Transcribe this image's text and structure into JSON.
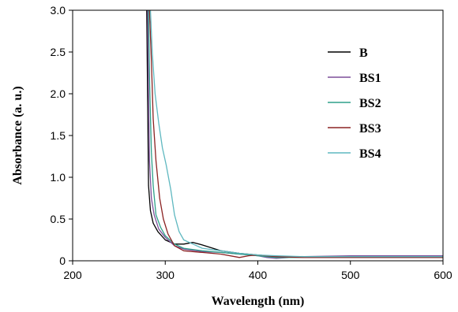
{
  "chart_data": {
    "type": "line",
    "xlabel": "Wavelength  (nm)",
    "ylabel": "Absorbance  (a. u.)",
    "xlim": [
      200,
      600
    ],
    "ylim": [
      0,
      3.0
    ],
    "x_ticks": [
      "200",
      "300",
      "400",
      "500",
      "600"
    ],
    "y_ticks": [
      "0",
      "0.5",
      "1.0",
      "1.5",
      "2.0",
      "2.5",
      "3.0"
    ],
    "legend_position": "top-right",
    "series": [
      {
        "name": "B",
        "color": "#000000",
        "points": [
          [
            280,
            3.0
          ],
          [
            281,
            1.9
          ],
          [
            282,
            0.9
          ],
          [
            284,
            0.6
          ],
          [
            287,
            0.45
          ],
          [
            292,
            0.35
          ],
          [
            300,
            0.25
          ],
          [
            310,
            0.2
          ],
          [
            320,
            0.2
          ],
          [
            330,
            0.22
          ],
          [
            340,
            0.19
          ],
          [
            360,
            0.12
          ],
          [
            380,
            0.09
          ],
          [
            400,
            0.07
          ],
          [
            420,
            0.05
          ],
          [
            450,
            0.04
          ],
          [
            500,
            0.04
          ],
          [
            550,
            0.05
          ],
          [
            600,
            0.05
          ]
        ]
      },
      {
        "name": "BS1",
        "color": "#7d4f9a",
        "points": [
          [
            281,
            3.0
          ],
          [
            282,
            2.0
          ],
          [
            283,
            1.2
          ],
          [
            285,
            0.75
          ],
          [
            288,
            0.55
          ],
          [
            293,
            0.38
          ],
          [
            300,
            0.28
          ],
          [
            310,
            0.18
          ],
          [
            320,
            0.14
          ],
          [
            340,
            0.11
          ],
          [
            360,
            0.1
          ],
          [
            380,
            0.08
          ],
          [
            400,
            0.06
          ],
          [
            410,
            0.04
          ],
          [
            420,
            0.03
          ],
          [
            450,
            0.05
          ],
          [
            500,
            0.06
          ],
          [
            550,
            0.06
          ],
          [
            600,
            0.06
          ]
        ]
      },
      {
        "name": "BS2",
        "color": "#2ea08a",
        "points": [
          [
            282,
            3.0
          ],
          [
            283,
            2.2
          ],
          [
            285,
            1.3
          ],
          [
            287,
            0.9
          ],
          [
            290,
            0.55
          ],
          [
            295,
            0.4
          ],
          [
            300,
            0.3
          ],
          [
            310,
            0.2
          ],
          [
            320,
            0.15
          ],
          [
            340,
            0.12
          ],
          [
            360,
            0.1
          ],
          [
            380,
            0.08
          ],
          [
            400,
            0.06
          ],
          [
            420,
            0.04
          ],
          [
            450,
            0.04
          ],
          [
            500,
            0.05
          ],
          [
            550,
            0.05
          ],
          [
            600,
            0.05
          ]
        ]
      },
      {
        "name": "BS3",
        "color": "#8b2323",
        "points": [
          [
            283,
            3.0
          ],
          [
            285,
            2.4
          ],
          [
            287,
            1.7
          ],
          [
            290,
            1.2
          ],
          [
            294,
            0.75
          ],
          [
            298,
            0.5
          ],
          [
            303,
            0.32
          ],
          [
            310,
            0.18
          ],
          [
            320,
            0.12
          ],
          [
            340,
            0.1
          ],
          [
            360,
            0.08
          ],
          [
            375,
            0.05
          ],
          [
            380,
            0.04
          ],
          [
            390,
            0.06
          ],
          [
            400,
            0.07
          ],
          [
            420,
            0.05
          ],
          [
            450,
            0.04
          ],
          [
            500,
            0.04
          ],
          [
            550,
            0.04
          ],
          [
            600,
            0.04
          ]
        ]
      },
      {
        "name": "BS4",
        "color": "#5fb8c0",
        "points": [
          [
            284,
            3.0
          ],
          [
            286,
            2.5
          ],
          [
            289,
            2.0
          ],
          [
            293,
            1.65
          ],
          [
            297,
            1.35
          ],
          [
            301,
            1.15
          ],
          [
            306,
            0.85
          ],
          [
            310,
            0.55
          ],
          [
            315,
            0.35
          ],
          [
            320,
            0.25
          ],
          [
            330,
            0.2
          ],
          [
            340,
            0.15
          ],
          [
            360,
            0.12
          ],
          [
            380,
            0.09
          ],
          [
            400,
            0.07
          ],
          [
            420,
            0.06
          ],
          [
            450,
            0.05
          ],
          [
            500,
            0.05
          ],
          [
            550,
            0.05
          ],
          [
            600,
            0.05
          ]
        ]
      }
    ]
  }
}
